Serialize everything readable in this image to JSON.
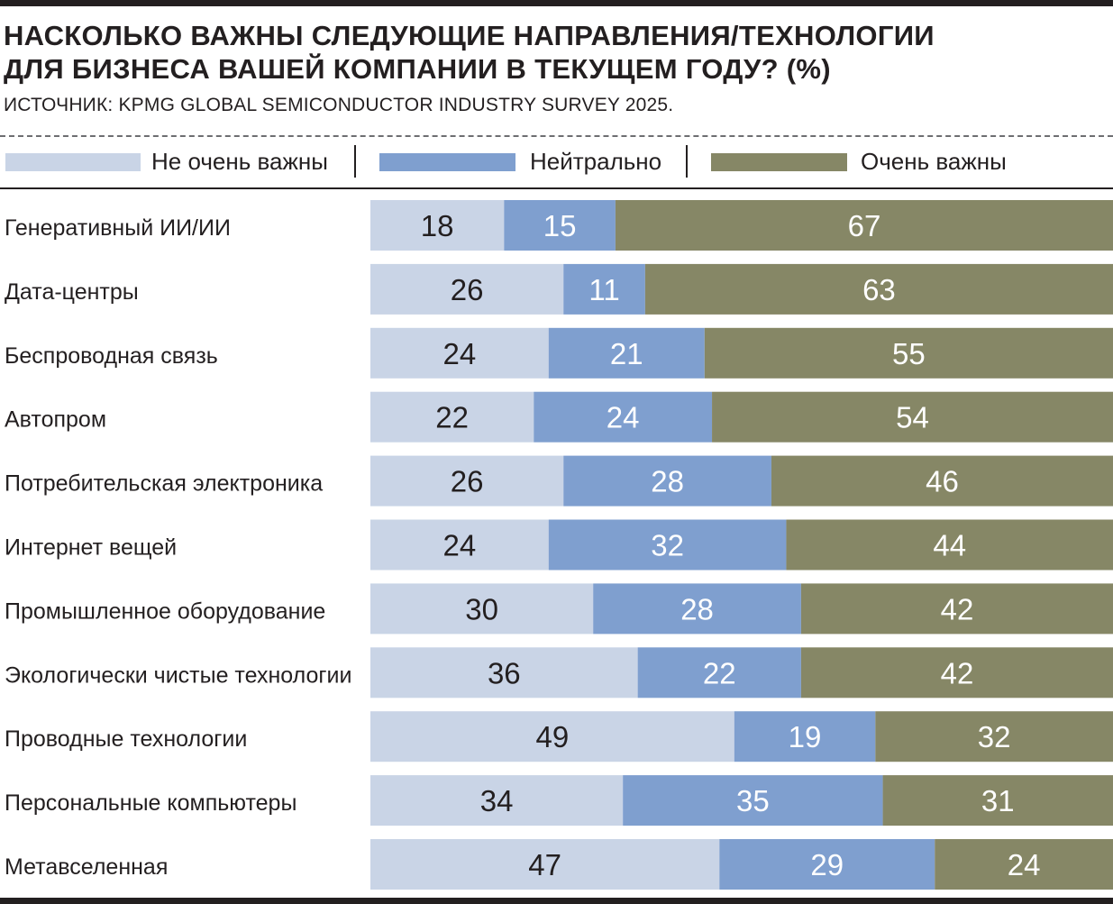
{
  "title_line1": "НАСКОЛЬКО ВАЖНЫ СЛЕДУЮЩИЕ НАПРАВЛЕНИЯ/ТЕХНОЛОГИИ",
  "title_line2": "ДЛЯ БИЗНЕСА ВАШЕЙ КОМПАНИИ В ТЕКУЩЕМ ГОДУ? (%)",
  "source": "ИСТОЧНИК: KPMG GLOBAL SEMICONDUCTOR INDUSTRY SURVEY 2025.",
  "colors": {
    "not_important": "#c9d4e6",
    "neutral": "#7f9fcf",
    "very_important": "#868766",
    "text_dark": "#231f20",
    "text_light": "#ffffff"
  },
  "chart_data": {
    "type": "bar",
    "orientation": "horizontal",
    "stacked": true,
    "legend_position": "top",
    "grid": false,
    "xlim": [
      0,
      100
    ],
    "categories": [
      "Генеративный ИИ/ИИ",
      "Дата-центры",
      "Беспроводная связь",
      "Автопром",
      "Потребительская электроника",
      "Интернет вещей",
      "Промышленное оборудование",
      "Экологически чистые технологии",
      "Проводные технологии",
      "Персональные компьютеры",
      "Метавселенная"
    ],
    "series": [
      {
        "name": "Не очень важны",
        "color": "#c9d4e6",
        "values": [
          18,
          26,
          24,
          22,
          26,
          24,
          30,
          36,
          49,
          34,
          47
        ]
      },
      {
        "name": "Нейтрально",
        "color": "#7f9fcf",
        "values": [
          15,
          11,
          21,
          24,
          28,
          32,
          28,
          22,
          19,
          35,
          29
        ]
      },
      {
        "name": "Очень важны",
        "color": "#868766",
        "values": [
          67,
          63,
          55,
          54,
          46,
          44,
          42,
          42,
          32,
          31,
          24
        ]
      }
    ]
  }
}
